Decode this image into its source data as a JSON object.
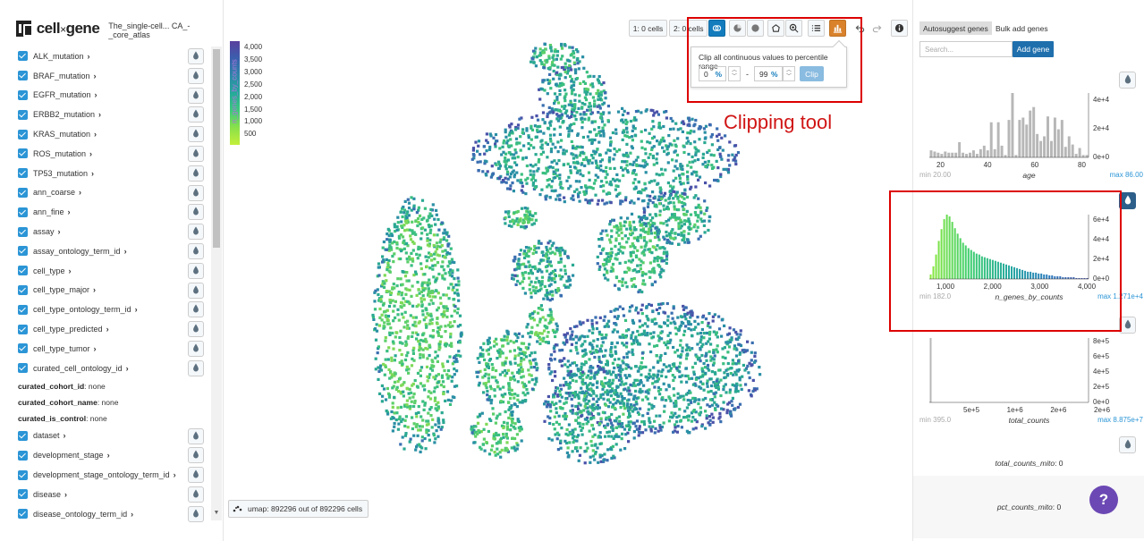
{
  "header": {
    "brand": "cell",
    "brand_x": "×",
    "brand_suffix": "gene",
    "dataset_title": "The_single-cell... CA_-_core_atlas"
  },
  "categories_a": [
    {
      "label": "ALK_mutation"
    },
    {
      "label": "BRAF_mutation"
    },
    {
      "label": "EGFR_mutation"
    },
    {
      "label": "ERBB2_mutation"
    },
    {
      "label": "KRAS_mutation"
    },
    {
      "label": "ROS_mutation"
    },
    {
      "label": "TP53_mutation"
    },
    {
      "label": "ann_coarse"
    },
    {
      "label": "ann_fine"
    },
    {
      "label": "assay"
    },
    {
      "label": "assay_ontology_term_id"
    },
    {
      "label": "cell_type"
    },
    {
      "label": "cell_type_major"
    },
    {
      "label": "cell_type_ontology_term_id"
    },
    {
      "label": "cell_type_predicted"
    },
    {
      "label": "cell_type_tumor"
    },
    {
      "label": "curated_cell_ontology_id"
    }
  ],
  "meta_fields": [
    {
      "key": "curated_cohort_id",
      "value": ": none"
    },
    {
      "key": "curated_cohort_name",
      "value": ": none"
    },
    {
      "key": "curated_is_control",
      "value": ": none"
    }
  ],
  "categories_b": [
    {
      "label": "dataset"
    },
    {
      "label": "development_stage"
    },
    {
      "label": "development_stage_ontology_term_id"
    },
    {
      "label": "disease"
    },
    {
      "label": "disease_ontology_term_id"
    }
  ],
  "chevron": "›",
  "legend": {
    "title": "n_genes_by_counts",
    "ticks": [
      "4,000",
      "3,500",
      "3,000",
      "2,500",
      "2,000",
      "1,500",
      "1,000",
      "500"
    ]
  },
  "toolbar": {
    "set1": "1: 0 cells",
    "set2": "2: 0 cells"
  },
  "clip_popover": {
    "title": "Clip all continuous values to percentile range",
    "min": "0",
    "max": "99",
    "pct": "%",
    "dash": "-",
    "button": "Clip"
  },
  "annotation": {
    "label": "Clipping tool"
  },
  "embedding": {
    "label": "umap: 892296 out of 892296 cells"
  },
  "right_panel": {
    "tab_autosuggest": "Autosuggest genes",
    "tab_bulk": "Bulk add genes",
    "search_placeholder": "Search...",
    "add_gene": "Add gene",
    "hists": [
      {
        "var": "age",
        "min": "min 20.00",
        "max": "max 86.00",
        "xticks": [
          "20",
          "40",
          "60",
          "80"
        ],
        "yticks": [
          "4e+4",
          "2e+4",
          "0e+0"
        ],
        "counts": [
          6,
          5,
          4,
          3,
          5,
          4,
          4,
          4,
          13,
          4,
          3,
          4,
          6,
          3,
          7,
          10,
          6,
          30,
          7,
          30,
          10,
          2,
          32,
          55,
          2,
          32,
          34,
          28,
          40,
          43,
          20,
          14,
          18,
          35,
          14,
          34,
          24,
          32,
          9,
          18,
          11,
          3,
          8,
          2,
          2
        ]
      },
      {
        "var": "n_genes_by_counts",
        "min": "min 182.0",
        "max": "max 1.271e+4",
        "xticks": [
          "1,000",
          "2,000",
          "3,000",
          "4,000"
        ],
        "yticks": [
          "6e+4",
          "4e+4",
          "2e+4",
          "0e+0"
        ],
        "counts": [
          5,
          14,
          27,
          42,
          55,
          66,
          71,
          69,
          63,
          56,
          50,
          45,
          40,
          37,
          34,
          32,
          30,
          28,
          27,
          25,
          24,
          23,
          22,
          21,
          20,
          19,
          18,
          17,
          16,
          15,
          14,
          13,
          12,
          11,
          10,
          9,
          8,
          8,
          7,
          7,
          6,
          6,
          5,
          5,
          4,
          4,
          3,
          3,
          3,
          2,
          2,
          2,
          2,
          2,
          1,
          1,
          1,
          1,
          1
        ]
      },
      {
        "var": "total_counts",
        "min": "min 395.0",
        "max": "max 8.875e+7",
        "xticks": [
          "5e+5",
          "1e+6",
          "2e+6",
          "2e+6"
        ],
        "yticks": [
          "8e+5",
          "6e+5",
          "4e+5",
          "2e+5",
          "0e+0"
        ],
        "counts": [
          100,
          0,
          0,
          0,
          0,
          0,
          0,
          0,
          0,
          0,
          0,
          0,
          0,
          0,
          0,
          0,
          0,
          0,
          0,
          0,
          0,
          0,
          0,
          0,
          0,
          0,
          0,
          0,
          0,
          0,
          0,
          0,
          0,
          0,
          0,
          0,
          0,
          0,
          0,
          0,
          0,
          0,
          0,
          0,
          0,
          0,
          0,
          0,
          0,
          0,
          0,
          0,
          0,
          0,
          0,
          0,
          0,
          0,
          0,
          0
        ]
      }
    ],
    "scalars": [
      {
        "name": "total_counts_mito",
        "value": ": 0"
      },
      {
        "name": "pct_counts_mito",
        "value": ": 0"
      }
    ]
  },
  "help": "?"
}
